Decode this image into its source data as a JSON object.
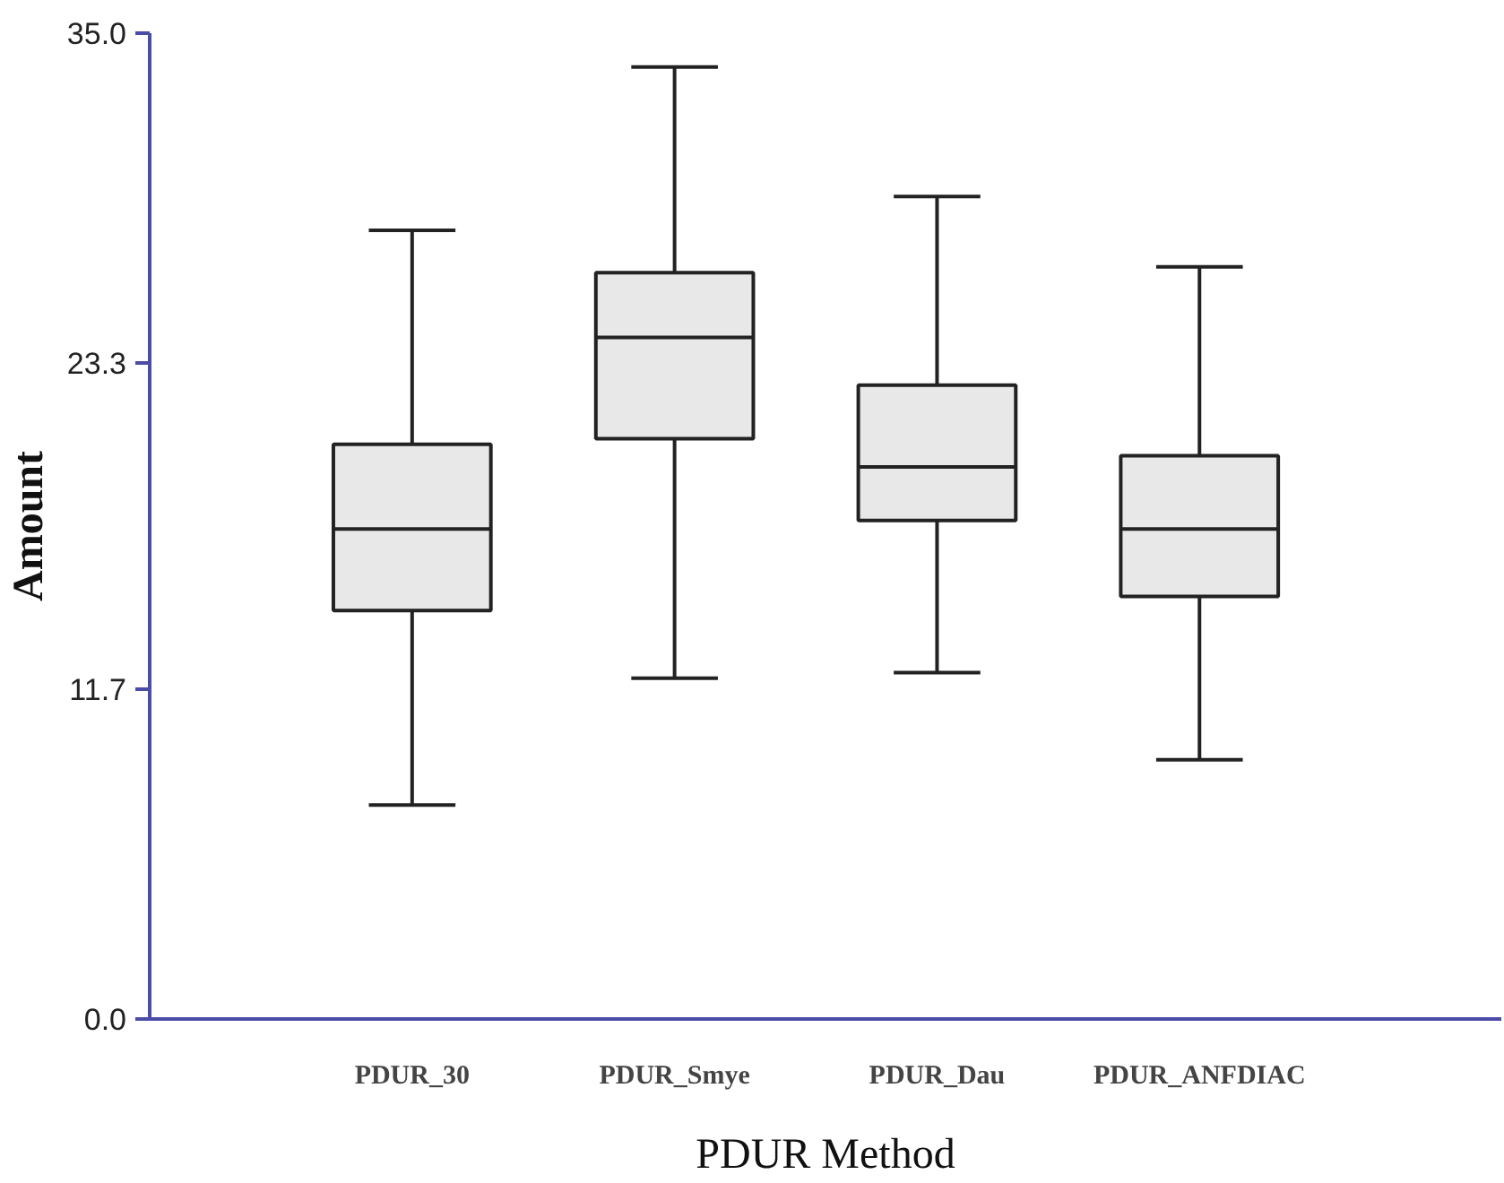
{
  "chart_data": {
    "type": "box",
    "xlabel": "PDUR Method",
    "ylabel": "Amount",
    "categories": [
      "PDUR_30",
      "PDUR_Smye",
      "PDUR_Dau",
      "PDUR_ANFDIAC"
    ],
    "boxes": [
      {
        "low": 7.6,
        "q1": 14.5,
        "median": 17.4,
        "q3": 20.4,
        "high": 28.0
      },
      {
        "low": 12.1,
        "q1": 20.6,
        "median": 24.2,
        "q3": 26.5,
        "high": 33.8
      },
      {
        "low": 12.3,
        "q1": 17.7,
        "median": 19.6,
        "q3": 22.5,
        "high": 29.2
      },
      {
        "low": 9.2,
        "q1": 15.0,
        "median": 17.4,
        "q3": 20.0,
        "high": 26.7
      }
    ],
    "color": "#e8e8e8",
    "ylim": [
      0,
      35
    ],
    "yticks": [
      {
        "value": 0,
        "label": "0.0"
      },
      11.7,
      23.3,
      {
        "value": 35,
        "label": "35.0"
      }
    ],
    "grid": false
  }
}
